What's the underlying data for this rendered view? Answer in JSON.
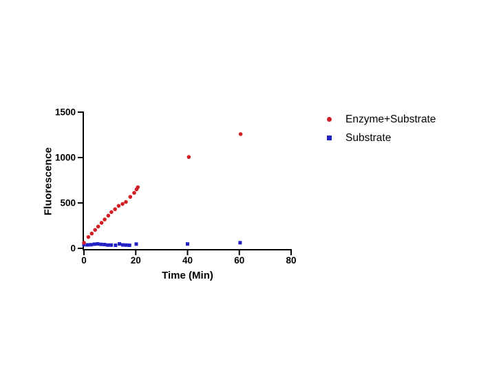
{
  "page": {
    "background_color": "#ffffff"
  },
  "chart_data": {
    "type": "scatter",
    "xlabel": "Time (Min)",
    "ylabel": "Fluorescence",
    "xlim": [
      0,
      80
    ],
    "ylim": [
      0,
      1500
    ],
    "x_ticks": [
      "0",
      "20",
      "40",
      "60",
      "80"
    ],
    "x_tick_values": [
      0,
      20,
      40,
      60,
      80
    ],
    "y_ticks": [
      "0",
      "500",
      "1000",
      "1500"
    ],
    "y_tick_values": [
      0,
      500,
      1000,
      1500
    ],
    "grid": false,
    "axis_color": "#000000",
    "legend_position": "right",
    "series": [
      {
        "name": "Enzyme+Substrate",
        "marker": "circle",
        "color": "#d02026",
        "points": [
          [
            0,
            62
          ],
          [
            1.7,
            125
          ],
          [
            3.0,
            163
          ],
          [
            4.3,
            203
          ],
          [
            5.5,
            240
          ],
          [
            6.8,
            281
          ],
          [
            8.0,
            318
          ],
          [
            9.4,
            360
          ],
          [
            10.6,
            399
          ],
          [
            12.0,
            431
          ],
          [
            13.4,
            468
          ],
          [
            14.9,
            489
          ],
          [
            16.2,
            511
          ],
          [
            17.9,
            567
          ],
          [
            19.4,
            611
          ],
          [
            20.3,
            649
          ],
          [
            20.8,
            673
          ],
          [
            40.5,
            1006
          ],
          [
            60.5,
            1258
          ]
        ]
      },
      {
        "name": "Substrate",
        "marker": "square",
        "color": "#2222c4",
        "points": [
          [
            0,
            40
          ],
          [
            1.4,
            38
          ],
          [
            2.7,
            40
          ],
          [
            4.0,
            46
          ],
          [
            5.3,
            49
          ],
          [
            6.6,
            44
          ],
          [
            7.9,
            42
          ],
          [
            9.2,
            36
          ],
          [
            10.5,
            36
          ],
          [
            12.2,
            34
          ],
          [
            13.7,
            49
          ],
          [
            15.0,
            38
          ],
          [
            16.3,
            36
          ],
          [
            17.6,
            34
          ],
          [
            20.2,
            47
          ],
          [
            40.0,
            48
          ],
          [
            60.3,
            62
          ]
        ]
      }
    ]
  }
}
